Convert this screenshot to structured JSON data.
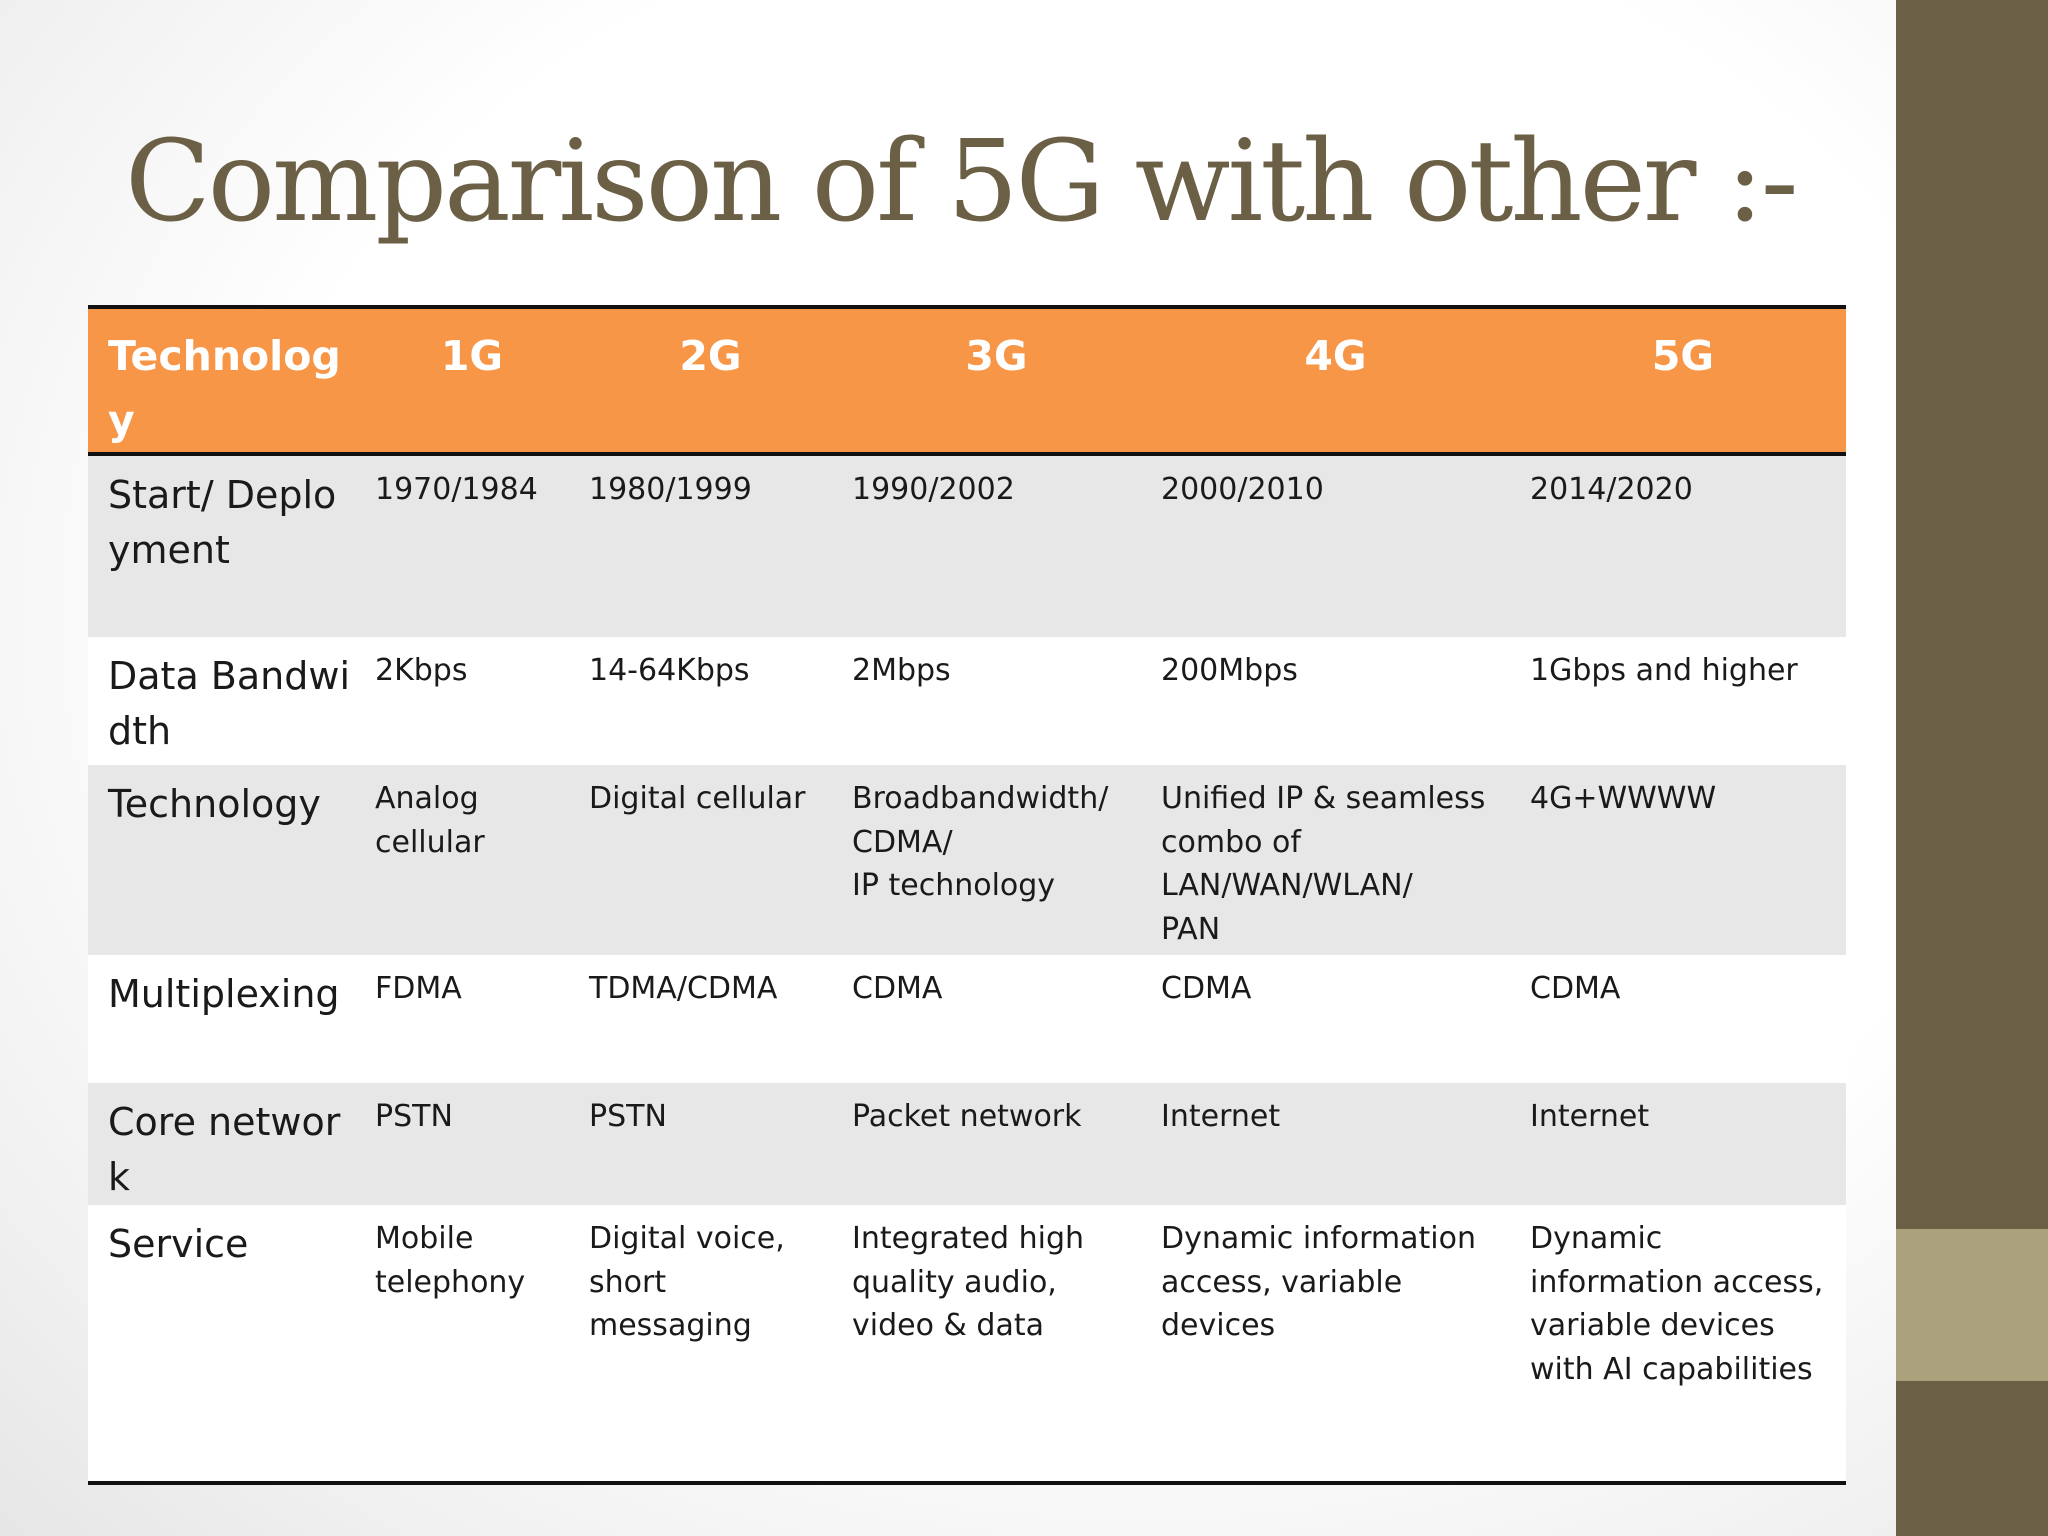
{
  "title": "Comparison of 5G with other :-",
  "colors": {
    "title": "#6b5f45",
    "header_bg": "#f79646",
    "header_text": "#ffffff",
    "row_shade": "#e7e7e7",
    "side_bar": "#6b5f45",
    "side_accent": "#a9a27d"
  },
  "table": {
    "headers": [
      "Technology",
      "1G",
      "2G",
      "3G",
      "4G",
      "5G"
    ],
    "rows": [
      {
        "label": "Start/ Deployment",
        "cells": [
          "1970/1984",
          "1980/1999",
          "1990/2002",
          "2000/2010",
          "2014/2020"
        ]
      },
      {
        "label": "Data Bandwidth",
        "cells": [
          "2Kbps",
          "14-64Kbps",
          "2Mbps",
          "200Mbps",
          "1Gbps and higher"
        ]
      },
      {
        "label": "Technology",
        "cells": [
          "Analog cellular",
          "Digital cellular",
          "Broadbandwidth/\nCDMA/\nIP technology",
          "Unified IP & seamless combo of LAN/WAN/WLAN/\nPAN",
          "4G+WWWW"
        ]
      },
      {
        "label": "Multiplexing",
        "cells": [
          "FDMA",
          "TDMA/CDMA",
          "CDMA",
          "CDMA",
          "CDMA"
        ]
      },
      {
        "label": "Core network",
        "cells": [
          "PSTN",
          "PSTN",
          "Packet network",
          "Internet",
          "Internet"
        ]
      },
      {
        "label": "Service",
        "cells": [
          "Mobile telephony",
          "Digital voice, short messaging",
          "Integrated high quality audio, video & data",
          "Dynamic information access, variable devices",
          "Dynamic information access, variable devices\nwith AI capabilities"
        ]
      }
    ]
  }
}
